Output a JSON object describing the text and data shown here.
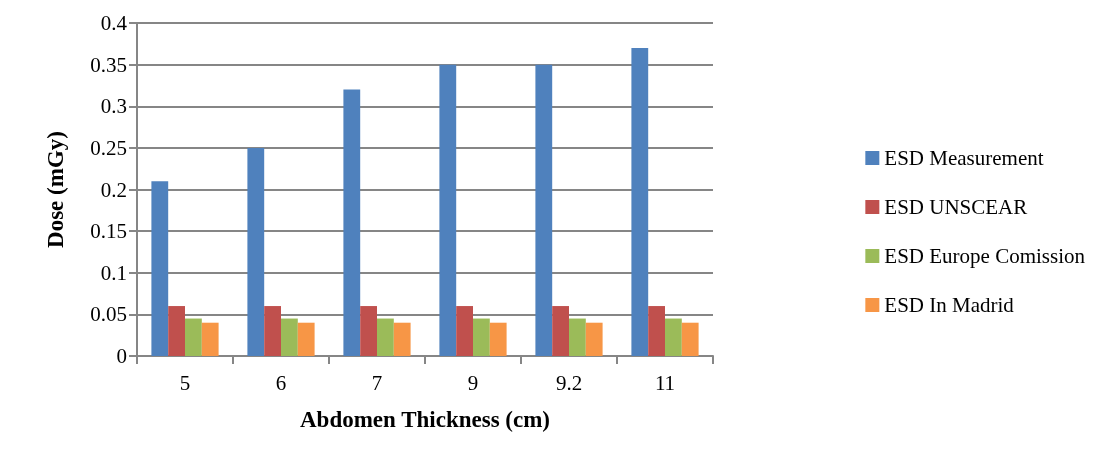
{
  "chart_data": {
    "type": "bar",
    "xlabel": "Abdomen Thickness (cm)",
    "ylabel": "Dose (mGy)",
    "categories": [
      "5",
      "6",
      "7",
      "9",
      "9.2",
      "11"
    ],
    "series": [
      {
        "name": "ESD Measurement",
        "color": "#4f81bd",
        "values": [
          0.21,
          0.25,
          0.32,
          0.35,
          0.35,
          0.37
        ]
      },
      {
        "name": "ESD UNSCEAR",
        "color": "#c0504d",
        "values": [
          0.06,
          0.06,
          0.06,
          0.06,
          0.06,
          0.06
        ]
      },
      {
        "name": "ESD Europe Comission",
        "color": "#9bbb59",
        "values": [
          0.045,
          0.045,
          0.045,
          0.045,
          0.045,
          0.045
        ]
      },
      {
        "name": "ESD In Madrid",
        "color": "#f79646",
        "values": [
          0.04,
          0.04,
          0.04,
          0.04,
          0.04,
          0.04
        ]
      }
    ],
    "ylim": [
      0,
      0.4
    ],
    "yticks": [
      0,
      0.05,
      0.1,
      0.15,
      0.2,
      0.25,
      0.3,
      0.35,
      0.4
    ],
    "grid": "y",
    "legend": "right"
  }
}
